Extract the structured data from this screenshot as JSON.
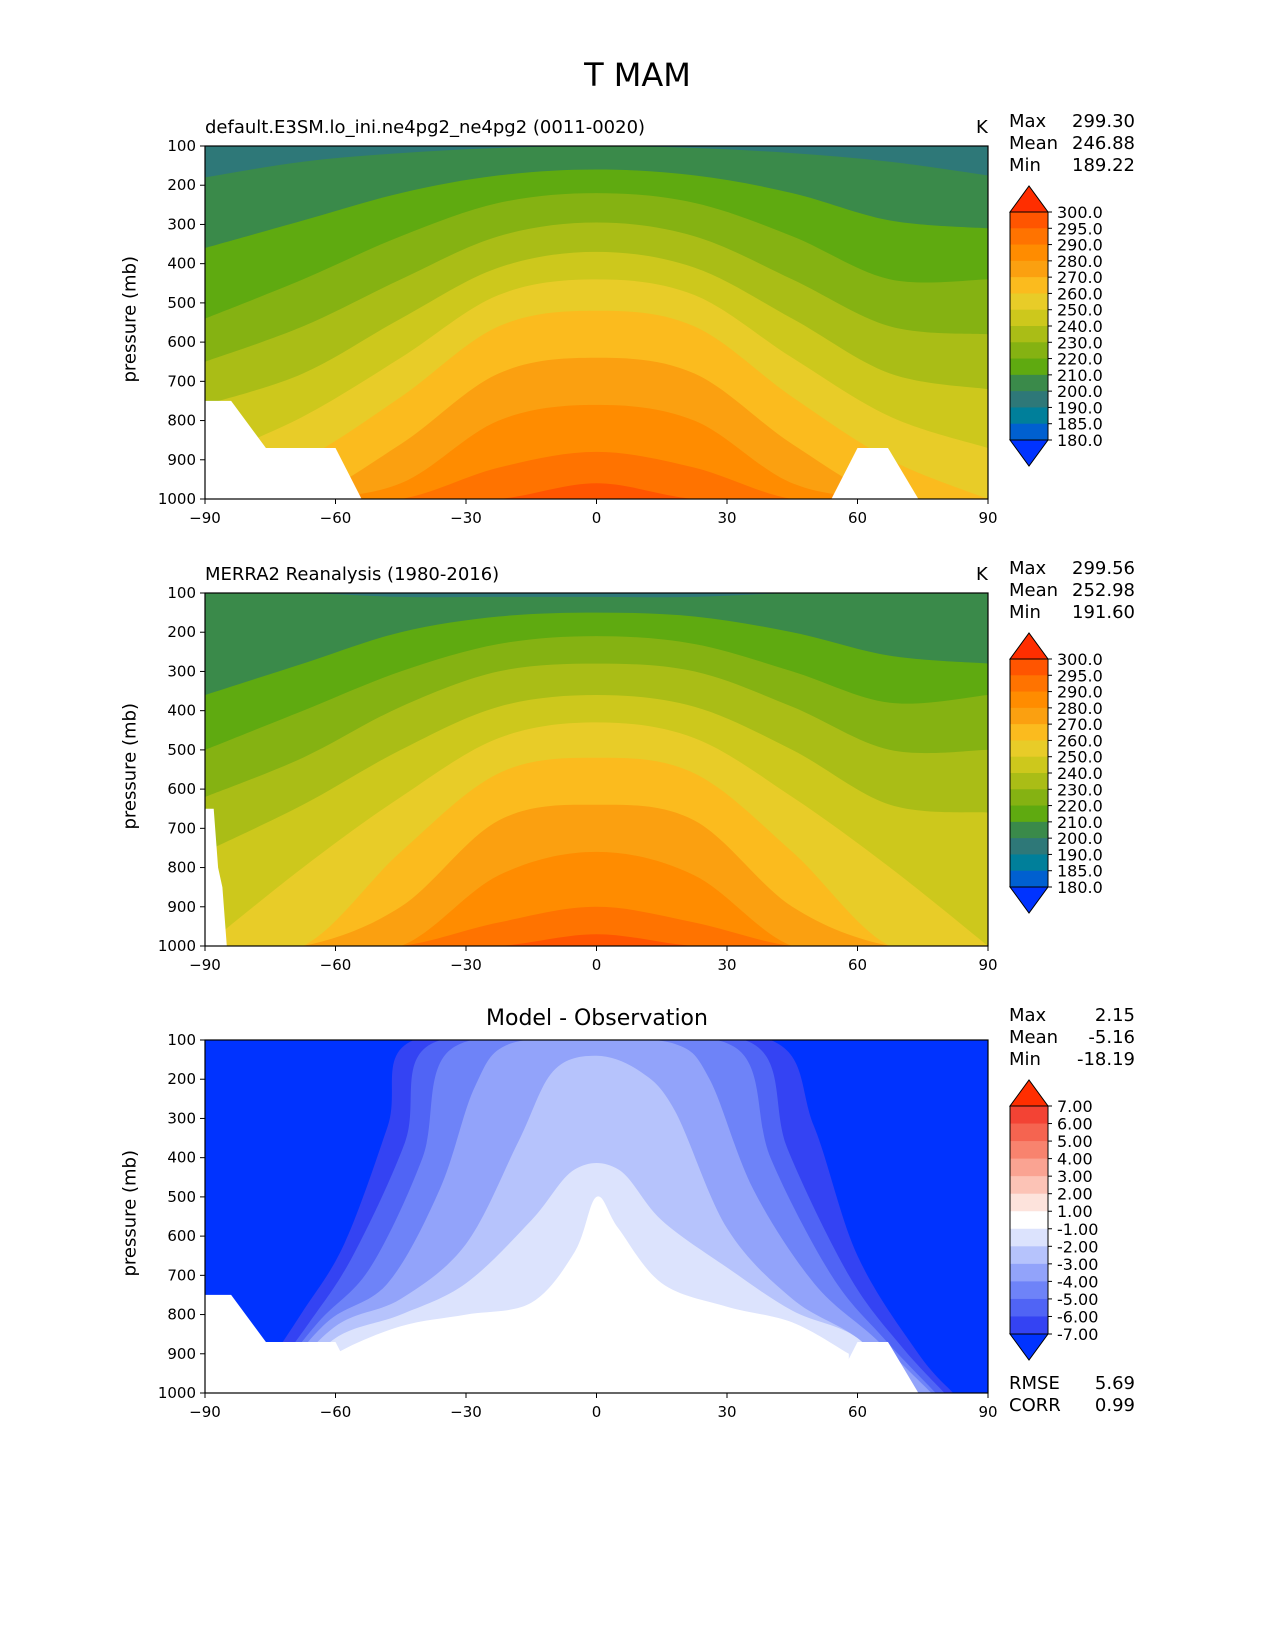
{
  "suptitle": "T MAM",
  "chart_data": [
    {
      "type": "heatmap",
      "subtype": "filled-contour",
      "title": "default.E3SM.lo_ini.ne4pg2_ne4pg2 (0011-0020)",
      "units": "K",
      "ylabel": "pressure (mb)",
      "xlim": [
        -90,
        90
      ],
      "ylim": [
        1000,
        100
      ],
      "xticks": [
        "−90",
        "−60",
        "−30",
        "0",
        "30",
        "60",
        "90"
      ],
      "yticks": [
        "100",
        "200",
        "300",
        "400",
        "500",
        "600",
        "700",
        "800",
        "900",
        "1000"
      ],
      "stats": {
        "Max": "299.30",
        "Mean": "246.88",
        "Min": "189.22"
      },
      "colorbar": {
        "levels": [
          "300.0",
          "295.0",
          "290.0",
          "280.0",
          "270.0",
          "260.0",
          "250.0",
          "240.0",
          "230.0",
          "220.0",
          "210.0",
          "200.0",
          "190.0",
          "185.0",
          "180.0"
        ],
        "colors": [
          "#ff2e00",
          "#ff5500",
          "#ff7300",
          "#ff8c00",
          "#fba010",
          "#fbbb1e",
          "#e8cc28",
          "#cdc81c",
          "#aabd16",
          "#85b212",
          "#5faa10",
          "#3a8a4a",
          "#2e7878",
          "#007f9a",
          "#0060d0",
          "#0033ff"
        ]
      },
      "isotherms": [
        {
          "T": 200,
          "p": [
            180,
            140,
            118,
            105,
            100,
            105,
            118,
            140,
            175
          ]
        },
        {
          "T": 210,
          "p": [
            360,
            290,
            220,
            175,
            160,
            175,
            220,
            290,
            310
          ]
        },
        {
          "T": 220,
          "p": [
            540,
            440,
            330,
            245,
            220,
            245,
            330,
            440,
            440
          ]
        },
        {
          "T": 230,
          "p": [
            650,
            560,
            440,
            330,
            295,
            330,
            440,
            560,
            580
          ]
        },
        {
          "T": 240,
          "p": [
            760,
            680,
            540,
            410,
            370,
            410,
            540,
            680,
            720
          ]
        },
        {
          "T": 250,
          "p": [
            900,
            790,
            640,
            480,
            440,
            480,
            640,
            790,
            870
          ]
        },
        {
          "T": 260,
          "p": [
            1000,
            900,
            740,
            560,
            520,
            560,
            740,
            900,
            1000
          ]
        },
        {
          "T": 270,
          "p": [
            1000,
            1000,
            860,
            680,
            640,
            680,
            860,
            1000,
            1000
          ]
        },
        {
          "T": 280,
          "p": [
            1000,
            1000,
            960,
            800,
            760,
            800,
            960,
            1000,
            1000
          ]
        },
        {
          "T": 290,
          "p": [
            1000,
            1000,
            1000,
            920,
            880,
            920,
            1000,
            1000,
            1000
          ]
        },
        {
          "T": 295,
          "p": [
            1000,
            1000,
            1000,
            1000,
            960,
            1000,
            1000,
            1000,
            1000
          ]
        }
      ],
      "no_data_regions": [
        {
          "x": [
            -90,
            -90,
            -84,
            -76,
            -60,
            -54,
            -90
          ],
          "p": [
            1000,
            750,
            750,
            870,
            870,
            1000,
            1000
          ]
        },
        {
          "x": [
            54,
            60,
            67,
            74,
            54
          ],
          "p": [
            1000,
            870,
            870,
            1000,
            1000
          ]
        }
      ]
    },
    {
      "type": "heatmap",
      "subtype": "filled-contour",
      "title": "MERRA2 Reanalysis (1980-2016)",
      "units": "K",
      "ylabel": "pressure (mb)",
      "xlim": [
        -90,
        90
      ],
      "ylim": [
        1000,
        100
      ],
      "xticks": [
        "−90",
        "−60",
        "−30",
        "0",
        "30",
        "60",
        "90"
      ],
      "yticks": [
        "100",
        "200",
        "300",
        "400",
        "500",
        "600",
        "700",
        "800",
        "900",
        "1000"
      ],
      "stats": {
        "Max": "299.56",
        "Mean": "252.98",
        "Min": "191.60"
      },
      "colorbar": {
        "levels": [
          "300.0",
          "295.0",
          "290.0",
          "280.0",
          "270.0",
          "260.0",
          "250.0",
          "240.0",
          "230.0",
          "220.0",
          "210.0",
          "200.0",
          "190.0",
          "185.0",
          "180.0"
        ],
        "colors": [
          "#ff2e00",
          "#ff5500",
          "#ff7300",
          "#ff8c00",
          "#fba010",
          "#fbbb1e",
          "#e8cc28",
          "#cdc81c",
          "#aabd16",
          "#85b212",
          "#5faa10",
          "#3a8a4a",
          "#2e7878",
          "#007f9a",
          "#0060d0",
          "#0033ff"
        ]
      },
      "isotherms": [
        {
          "T": 200,
          "p": [
            100,
            100,
            110,
            110,
            110,
            110,
            100,
            100,
            100
          ]
        },
        {
          "T": 210,
          "p": [
            360,
            280,
            200,
            160,
            150,
            160,
            200,
            260,
            280
          ]
        },
        {
          "T": 220,
          "p": [
            500,
            400,
            300,
            230,
            210,
            230,
            300,
            380,
            360
          ]
        },
        {
          "T": 230,
          "p": [
            620,
            520,
            390,
            300,
            280,
            300,
            390,
            500,
            500
          ]
        },
        {
          "T": 240,
          "p": [
            760,
            640,
            500,
            390,
            360,
            390,
            500,
            640,
            660
          ]
        },
        {
          "T": 250,
          "p": [
            1000,
            800,
            620,
            470,
            430,
            470,
            620,
            800,
            1000
          ]
        },
        {
          "T": 260,
          "p": [
            1000,
            1000,
            760,
            560,
            520,
            560,
            760,
            1000,
            1000
          ]
        },
        {
          "T": 270,
          "p": [
            1000,
            1000,
            900,
            680,
            640,
            680,
            900,
            1000,
            1000
          ]
        },
        {
          "T": 280,
          "p": [
            1000,
            1000,
            1000,
            820,
            760,
            820,
            1000,
            1000,
            1000
          ]
        },
        {
          "T": 290,
          "p": [
            1000,
            1000,
            1000,
            940,
            900,
            940,
            1000,
            1000,
            1000
          ]
        },
        {
          "T": 295,
          "p": [
            1000,
            1000,
            1000,
            1000,
            970,
            1000,
            1000,
            1000,
            1000
          ]
        }
      ],
      "no_data_regions": [
        {
          "x": [
            -90,
            -90,
            -88,
            -87,
            -86,
            -85,
            -90
          ],
          "p": [
            1000,
            650,
            650,
            800,
            850,
            1000,
            1000
          ]
        }
      ]
    },
    {
      "type": "heatmap",
      "subtype": "filled-contour",
      "title": "Model - Observation",
      "ylabel": "pressure (mb)",
      "xlim": [
        -90,
        90
      ],
      "ylim": [
        1000,
        100
      ],
      "xticks": [
        "−90",
        "−60",
        "−30",
        "0",
        "30",
        "60",
        "90"
      ],
      "yticks": [
        "100",
        "200",
        "300",
        "400",
        "500",
        "600",
        "700",
        "800",
        "900",
        "1000"
      ],
      "stats": {
        "Max": "2.15",
        "Mean": "-5.16",
        "Min": "-18.19"
      },
      "bottom_stats": {
        "RMSE": "5.69",
        "CORR": "0.99"
      },
      "colorbar": {
        "levels": [
          "7.00",
          "6.00",
          "5.00",
          "4.00",
          "3.00",
          "2.00",
          "1.00",
          "-1.00",
          "-2.00",
          "-3.00",
          "-4.00",
          "-5.00",
          "-6.00",
          "-7.00"
        ],
        "colors": [
          "#ff2e00",
          "#f34334",
          "#f56450",
          "#f8836e",
          "#faa392",
          "#fcc3b6",
          "#fde3dc",
          "#ffffff",
          "#dce3fd",
          "#b6c3fc",
          "#92a3fa",
          "#6e83f8",
          "#5064f5",
          "#3443f3",
          "#0033ff"
        ]
      },
      "isolines": [
        {
          "v": -1,
          "x": [
            -72,
            -60,
            -45,
            -30,
            -15,
            -5,
            0,
            5,
            15,
            30,
            45,
            58
          ],
          "p": [
            1000,
            900,
            830,
            800,
            770,
            640,
            500,
            580,
            720,
            780,
            820,
            900
          ]
        },
        {
          "v": -2,
          "x": [
            -72,
            -60,
            -45,
            -30,
            -15,
            -5,
            5,
            15,
            30,
            45,
            60,
            70
          ],
          "p": [
            1000,
            860,
            800,
            720,
            560,
            430,
            430,
            560,
            680,
            790,
            860,
            1000
          ]
        },
        {
          "v": -3,
          "x": [
            -75,
            -60,
            -45,
            -30,
            -18,
            -10,
            0,
            10,
            18,
            30,
            45,
            60,
            74
          ],
          "p": [
            1000,
            830,
            760,
            620,
            360,
            180,
            140,
            180,
            280,
            580,
            760,
            860,
            1000
          ]
        },
        {
          "v": -4,
          "x": [
            -76,
            -62,
            -48,
            -36,
            -28,
            -20,
            0,
            18,
            26,
            36,
            50,
            64,
            77
          ],
          "p": [
            1000,
            820,
            720,
            480,
            220,
            110,
            100,
            110,
            200,
            480,
            720,
            860,
            1000
          ]
        },
        {
          "v": -5,
          "x": [
            -77,
            -64,
            -52,
            -40,
            -33,
            0,
            32,
            40,
            54,
            66,
            78
          ],
          "p": [
            1000,
            820,
            680,
            400,
            120,
            100,
            120,
            400,
            700,
            860,
            1000
          ]
        },
        {
          "v": -6,
          "x": [
            -78,
            -66,
            -56,
            -44,
            -38,
            0,
            36,
            44,
            58,
            70,
            80
          ],
          "p": [
            1000,
            820,
            650,
            360,
            110,
            100,
            110,
            380,
            700,
            880,
            1000
          ]
        },
        {
          "v": -7,
          "x": [
            -80,
            -68,
            -58,
            -48,
            -42,
            0,
            40,
            50,
            60,
            74,
            82
          ],
          "p": [
            1000,
            800,
            620,
            320,
            100,
            100,
            100,
            320,
            650,
            900,
            1000
          ]
        }
      ],
      "no_data_regions": [
        {
          "x": [
            -90,
            -90,
            -84,
            -76,
            -60,
            -54,
            -90
          ],
          "p": [
            1000,
            750,
            750,
            870,
            870,
            1000,
            1000
          ]
        },
        {
          "x": [
            54,
            60,
            67,
            74,
            54
          ],
          "p": [
            1000,
            870,
            870,
            1000,
            1000
          ]
        }
      ]
    }
  ]
}
